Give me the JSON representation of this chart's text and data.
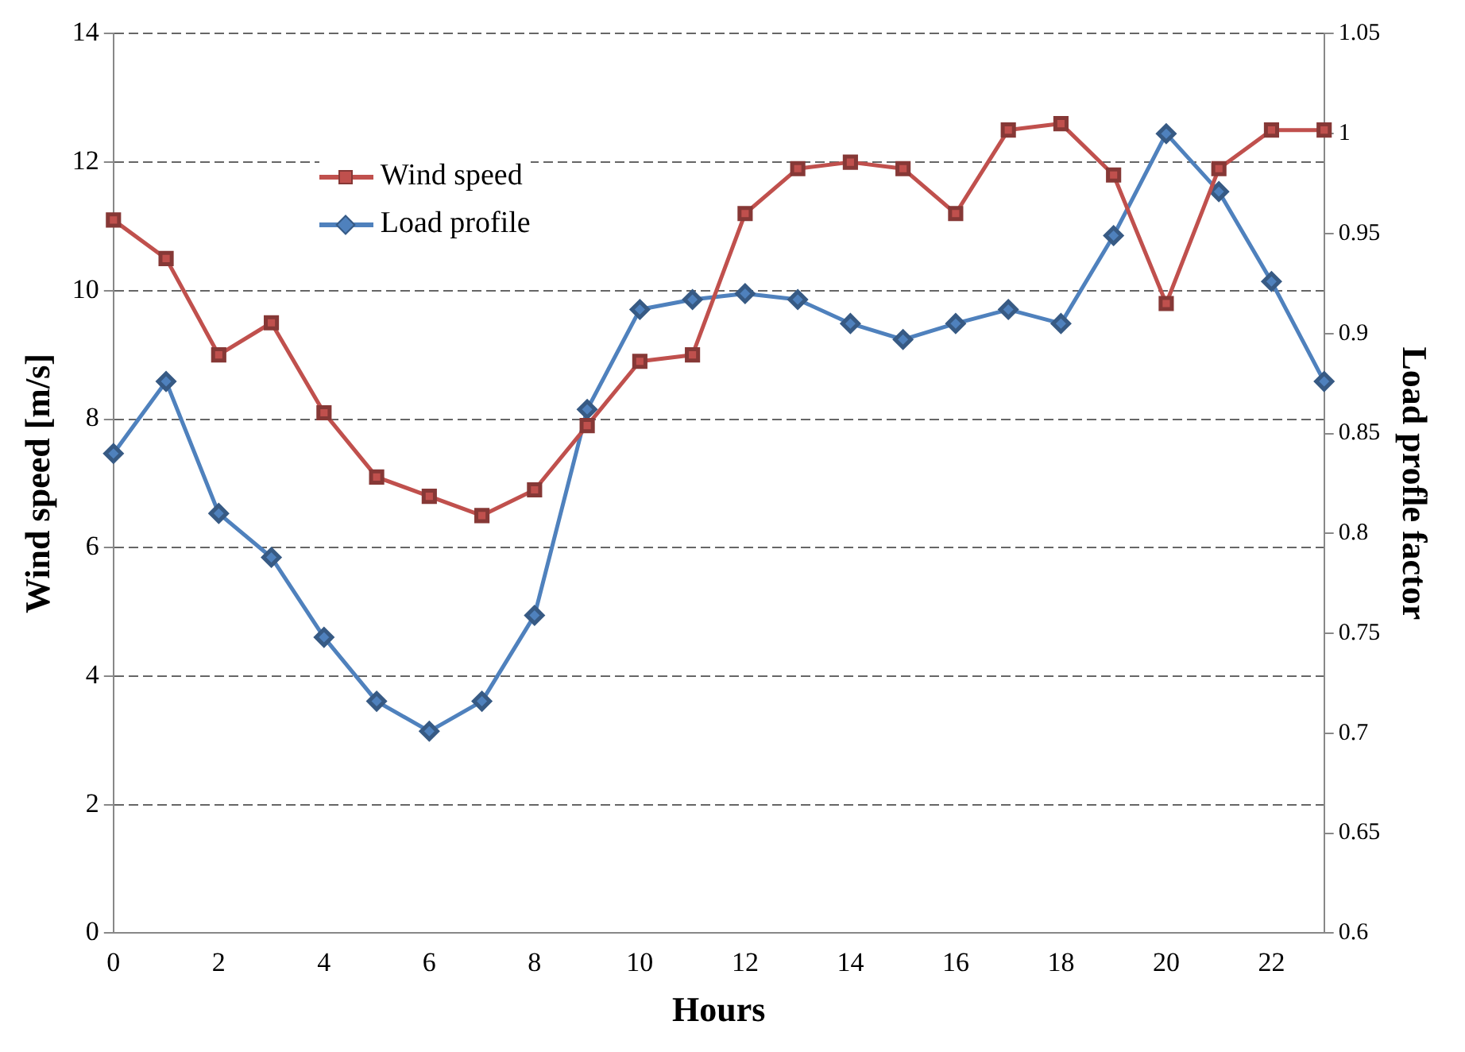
{
  "chart_data": {
    "type": "line",
    "xlabel": "Hours",
    "ylabel": "Wind speed [m/s]",
    "y2label": "Load profle factor",
    "categories": [
      "0",
      null,
      "2",
      null,
      "4",
      null,
      "6",
      null,
      "8",
      null,
      "10",
      null,
      "12",
      null,
      "14",
      null,
      "16",
      null,
      "18",
      null,
      "20",
      null,
      "22",
      null
    ],
    "series": [
      {
        "name": "Wind speed",
        "color": "#c0504d",
        "marker": "square",
        "values": [
          11.1,
          10.5,
          9.0,
          9.5,
          8.1,
          7.1,
          6.8,
          6.5,
          6.9,
          7.9,
          8.9,
          9.0,
          11.2,
          11.9,
          12.0,
          11.9,
          11.2,
          12.5,
          12.6,
          11.8,
          9.8,
          11.9,
          12.5,
          12.5
        ]
      },
      {
        "name": "Load profile",
        "color": "#4f81bd",
        "marker": "diamond",
        "axis": "y2",
        "values": [
          0.84,
          0.876,
          0.81,
          0.788,
          0.748,
          0.716,
          0.701,
          0.716,
          0.759,
          0.862,
          0.912,
          0.917,
          0.92,
          0.917,
          0.905,
          0.897,
          0.905,
          0.912,
          0.905,
          0.949,
          1.0,
          0.971,
          0.926,
          0.876
        ]
      }
    ],
    "ylim": [
      0,
      14
    ],
    "yticks": [
      0,
      2,
      4,
      6,
      8,
      10,
      12,
      14
    ],
    "y2lim": [
      0.6,
      1.05
    ],
    "y2ticks": [
      0.6,
      0.65,
      0.7,
      0.75,
      0.8,
      0.85,
      0.9,
      0.95,
      1,
      1.05
    ],
    "grid": "y",
    "line_style": "solid",
    "legend": "top left"
  }
}
